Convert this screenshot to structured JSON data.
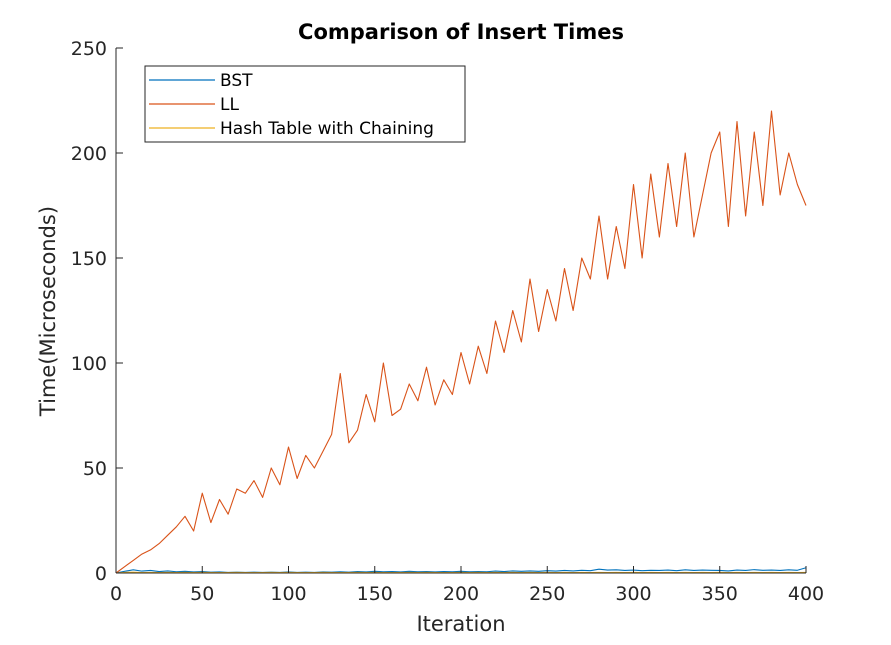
{
  "chart_data": {
    "type": "line",
    "title": "Comparison of Insert Times",
    "xlabel": "Iteration",
    "ylabel": "Time(Microseconds)",
    "xlim": [
      0,
      400
    ],
    "ylim": [
      0,
      250
    ],
    "xticks": [
      0,
      50,
      100,
      150,
      200,
      250,
      300,
      350,
      400
    ],
    "yticks": [
      0,
      50,
      100,
      150,
      200,
      250
    ],
    "grid": false,
    "legend_position": "top-left",
    "x": [
      0,
      5,
      10,
      15,
      20,
      25,
      30,
      35,
      40,
      45,
      50,
      55,
      60,
      65,
      70,
      75,
      80,
      85,
      90,
      95,
      100,
      105,
      110,
      115,
      120,
      125,
      130,
      135,
      140,
      145,
      150,
      155,
      160,
      165,
      170,
      175,
      180,
      185,
      190,
      195,
      200,
      205,
      210,
      215,
      220,
      225,
      230,
      235,
      240,
      245,
      250,
      255,
      260,
      265,
      270,
      275,
      280,
      285,
      290,
      295,
      300,
      305,
      310,
      315,
      320,
      325,
      330,
      335,
      340,
      345,
      350,
      355,
      360,
      365,
      370,
      375,
      380,
      385,
      390,
      395,
      400
    ],
    "series": [
      {
        "name": "BST",
        "color": "#0072BD",
        "values": [
          0,
          0.8,
          1.5,
          0.9,
          1.2,
          0.7,
          1.0,
          0.6,
          0.8,
          0.5,
          0.7,
          0.4,
          0.5,
          0.3,
          0.4,
          0.3,
          0.4,
          0.3,
          0.4,
          0.3,
          0.5,
          0.3,
          0.4,
          0.3,
          0.5,
          0.4,
          0.6,
          0.4,
          0.7,
          0.5,
          0.8,
          0.6,
          0.7,
          0.5,
          0.8,
          0.6,
          0.7,
          0.5,
          0.7,
          0.6,
          0.8,
          0.6,
          0.7,
          0.6,
          0.9,
          0.7,
          1.0,
          0.8,
          1.0,
          0.8,
          1.1,
          0.9,
          1.2,
          1.0,
          1.3,
          1.1,
          1.8,
          1.4,
          1.5,
          1.2,
          1.4,
          1.1,
          1.3,
          1.2,
          1.4,
          1.1,
          1.5,
          1.2,
          1.4,
          1.3,
          1.2,
          1.0,
          1.4,
          1.2,
          1.6,
          1.3,
          1.4,
          1.2,
          1.5,
          1.3,
          2.5
        ]
      },
      {
        "name": "LL",
        "color": "#D95319",
        "values": [
          0,
          3,
          6,
          9,
          11,
          14,
          18,
          22,
          27,
          20,
          38,
          24,
          35,
          28,
          40,
          38,
          44,
          36,
          50,
          42,
          60,
          45,
          56,
          50,
          58,
          66,
          95,
          62,
          68,
          85,
          72,
          100,
          75,
          78,
          90,
          82,
          98,
          80,
          92,
          85,
          105,
          90,
          108,
          95,
          120,
          105,
          125,
          110,
          140,
          115,
          135,
          120,
          145,
          125,
          150,
          140,
          170,
          140,
          165,
          145,
          185,
          150,
          190,
          160,
          195,
          165,
          200,
          160,
          180,
          200,
          210,
          165,
          215,
          170,
          210,
          175,
          220,
          180,
          200,
          185,
          175
        ]
      },
      {
        "name": "Hash Table with Chaining",
        "color": "#EDB120",
        "values": [
          0,
          0.3,
          0.4,
          0.2,
          0.3,
          0.2,
          0.3,
          0.2,
          0.3,
          0.2,
          0.3,
          0.2,
          0.2,
          0.2,
          0.3,
          0.2,
          0.2,
          0.2,
          0.3,
          0.2,
          0.3,
          0.2,
          0.2,
          0.2,
          0.3,
          0.2,
          0.2,
          0.2,
          0.3,
          0.2,
          0.3,
          0.2,
          0.2,
          0.2,
          0.3,
          0.2,
          0.3,
          0.2,
          0.2,
          0.2,
          0.3,
          0.2,
          0.3,
          0.2,
          0.3,
          0.2,
          0.3,
          0.2,
          0.3,
          0.2,
          0.3,
          0.2,
          0.3,
          0.2,
          0.3,
          0.2,
          0.3,
          0.2,
          0.3,
          0.2,
          0.3,
          0.2,
          0.3,
          0.2,
          0.3,
          0.2,
          0.3,
          0.2,
          0.3,
          0.2,
          0.3,
          0.2,
          0.3,
          0.2,
          0.3,
          0.2,
          0.3,
          0.2,
          0.3,
          0.2,
          0.3
        ]
      }
    ]
  }
}
